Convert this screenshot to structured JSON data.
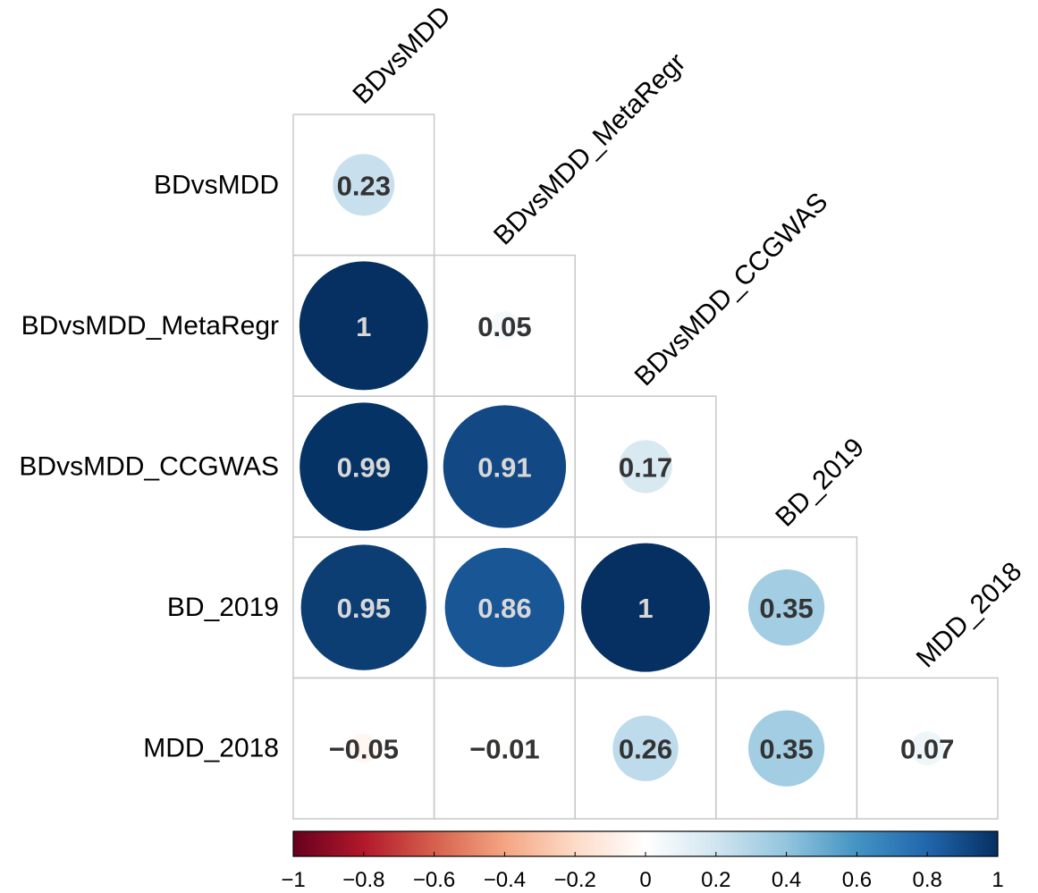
{
  "chart_data": {
    "type": "heatmap",
    "shape": "lower-triangle circle correlation matrix",
    "variables": [
      "BDvsMDD",
      "BDvsMDD_MetaRegr",
      "BDvsMDD_CCGWAS",
      "BD_2019",
      "MDD_2018"
    ],
    "matrix": [
      [
        0.23
      ],
      [
        1,
        0.05
      ],
      [
        0.99,
        0.91,
        0.17
      ],
      [
        0.95,
        0.86,
        1,
        0.35
      ],
      [
        -0.05,
        -0.01,
        0.26,
        0.35,
        0.07
      ]
    ],
    "value_labels": [
      [
        "0.23"
      ],
      [
        "1",
        "0.05"
      ],
      [
        "0.99",
        "0.91",
        "0.17"
      ],
      [
        "0.95",
        "0.86",
        "1",
        "0.35"
      ],
      [
        "−0.05",
        "−0.01",
        "0.26",
        "0.35",
        "0.07"
      ]
    ],
    "colorbar": {
      "range": [
        -1,
        1
      ],
      "ticks": [
        -1,
        -0.8,
        -0.6,
        -0.4,
        -0.2,
        0,
        0.2,
        0.4,
        0.6,
        0.8,
        1
      ],
      "tick_labels": [
        "−1",
        "−0.8",
        "−0.6",
        "−0.4",
        "−0.2",
        "0",
        "0.2",
        "0.4",
        "0.6",
        "0.8",
        "1"
      ],
      "colors": [
        "#67001F",
        "#B2182B",
        "#D6604D",
        "#F4A582",
        "#FDDBC7",
        "#FFFFFF",
        "#D1E5F0",
        "#92C5DE",
        "#4393C3",
        "#2166AC",
        "#053061"
      ]
    },
    "text_colors": {
      "dark_text": "#333333",
      "light_text": "#d8d8d8"
    }
  }
}
